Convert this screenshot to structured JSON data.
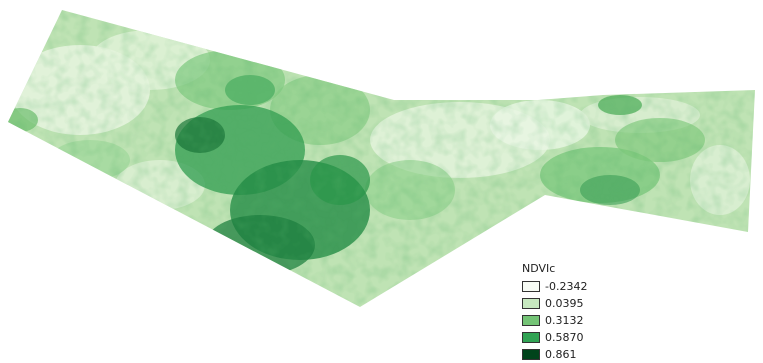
{
  "legend": {
    "title": "NDVIc",
    "entries": [
      {
        "label": "-0.2342",
        "color": "#f7fcf5"
      },
      {
        "label": "0.0395",
        "color": "#c7e9c0"
      },
      {
        "label": "0.3132",
        "color": "#74c476"
      },
      {
        "label": "0.5870",
        "color": "#31a354"
      },
      {
        "label": "0.861",
        "color": "#00441b"
      }
    ]
  },
  "colors": {
    "ramp": [
      "#f7fcf5",
      "#c7e9c0",
      "#74c476",
      "#31a354",
      "#00441b"
    ],
    "background": "#ffffff"
  }
}
